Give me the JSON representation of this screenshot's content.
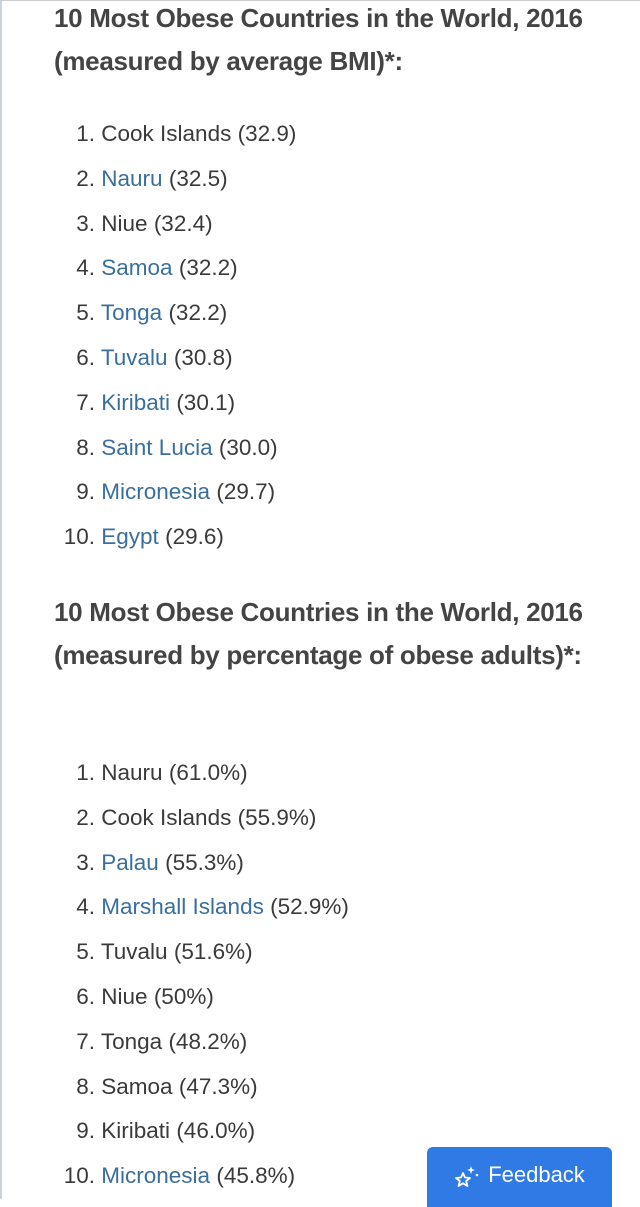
{
  "section1": {
    "heading": "10 Most Obese Countries in the World, 2016 (measured by average BMI)*:",
    "items": [
      {
        "num": "1.",
        "name": "Cook Islands",
        "value": "(32.9)",
        "linked": false
      },
      {
        "num": "2.",
        "name": "Nauru",
        "value": "(32.5)",
        "linked": true
      },
      {
        "num": "3.",
        "name": "Niue",
        "value": "(32.4)",
        "linked": false
      },
      {
        "num": "4.",
        "name": "Samoa",
        "value": "(32.2)",
        "linked": true
      },
      {
        "num": "5.",
        "name": "Tonga",
        "value": "(32.2)",
        "linked": true
      },
      {
        "num": "6.",
        "name": "Tuvalu",
        "value": "(30.8)",
        "linked": true
      },
      {
        "num": "7.",
        "name": "Kiribati",
        "value": "(30.1)",
        "linked": true
      },
      {
        "num": "8.",
        "name": "Saint Lucia",
        "value": "(30.0)",
        "linked": true
      },
      {
        "num": "9.",
        "name": "Micronesia",
        "value": "(29.7)",
        "linked": true
      },
      {
        "num": "10.",
        "name": "Egypt",
        "value": "(29.6)",
        "linked": true
      }
    ]
  },
  "section2": {
    "heading": "10 Most Obese Countries in the World, 2016 (measured by percentage of obese adults)*:",
    "items": [
      {
        "num": "1.",
        "name": "Nauru",
        "value": "(61.0%)",
        "linked": false
      },
      {
        "num": "2.",
        "name": "Cook Islands",
        "value": "(55.9%)",
        "linked": false
      },
      {
        "num": "3.",
        "name": "Palau",
        "value": "(55.3%)",
        "linked": true
      },
      {
        "num": "4.",
        "name": "Marshall Islands",
        "value": "(52.9%)",
        "linked": true
      },
      {
        "num": "5.",
        "name": "Tuvalu",
        "value": "(51.6%)",
        "linked": false
      },
      {
        "num": "6.",
        "name": "Niue",
        "value": "(50%)",
        "linked": false
      },
      {
        "num": "7.",
        "name": "Tonga",
        "value": "(48.2%)",
        "linked": false
      },
      {
        "num": "8.",
        "name": "Samoa",
        "value": "(47.3%)",
        "linked": false
      },
      {
        "num": "9.",
        "name": "Kiribati",
        "value": "(46.0%)",
        "linked": false
      },
      {
        "num": "10.",
        "name": "Micronesia",
        "value": "(45.8%)",
        "linked": true
      }
    ]
  },
  "feedback": {
    "label": "Feedback",
    "icon": "sparkle-star-icon"
  },
  "colors": {
    "link": "#3a6f9c",
    "text": "#3a3a3a",
    "heading": "#444444",
    "button": "#2f7ae5"
  }
}
